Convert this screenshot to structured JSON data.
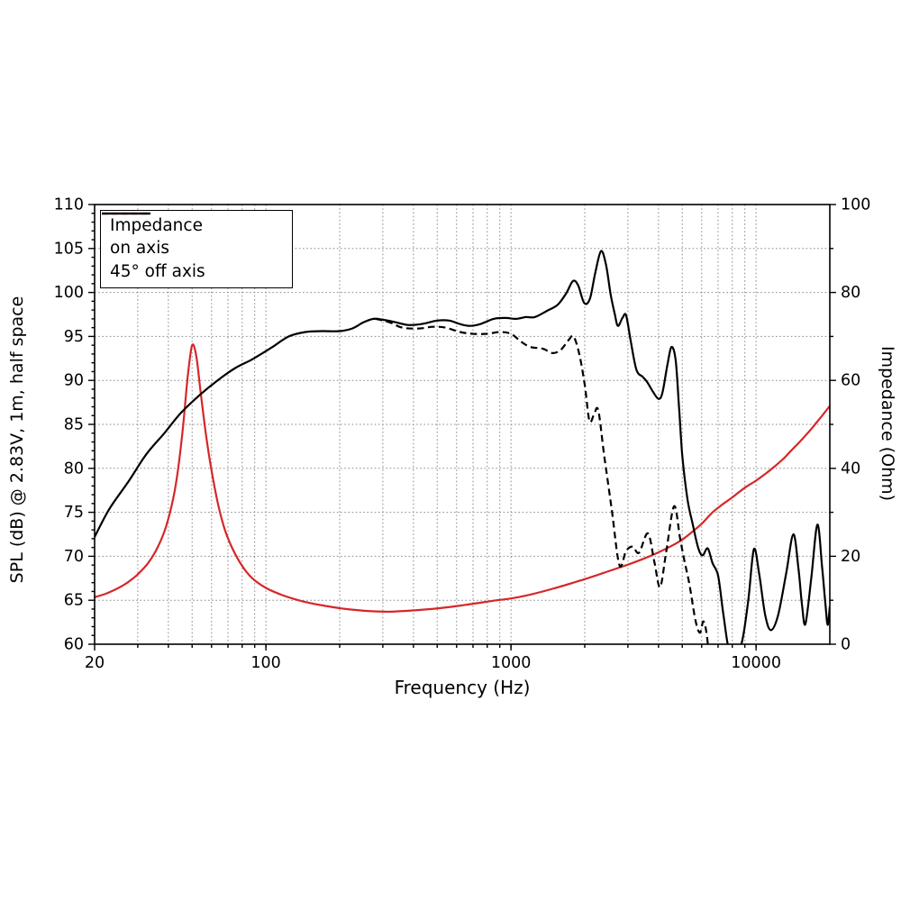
{
  "chart_data": {
    "type": "line",
    "title": "",
    "xlabel": "Frequency (Hz)",
    "ylabel_left": "SPL (dB) @ 2.83V, 1m, half space",
    "ylabel_right": "Impedance (Ohm)",
    "x_scale": "log",
    "x_range": [
      20,
      20000
    ],
    "x_major_ticks": [
      20,
      100,
      1000,
      10000
    ],
    "x_tick_labels": [
      "20",
      "100",
      "1000",
      "10000"
    ],
    "y_left_range": [
      60,
      110
    ],
    "y_left_major_step": 5,
    "y_left_minor_step": 1,
    "y_left_tick_labels": [
      "60",
      "65",
      "70",
      "75",
      "80",
      "85",
      "90",
      "95",
      "100",
      "105",
      "110"
    ],
    "y_right_range": [
      0,
      100
    ],
    "y_right_major_step": 20,
    "y_right_minor_step": 10,
    "y_right_tick_labels": [
      "0",
      "20",
      "40",
      "60",
      "80",
      "100"
    ],
    "grid": "dotted",
    "grid_color": "#8a8a8a",
    "legend_position": "upper left",
    "colors": {
      "impedance": "#d62728",
      "spl": "#000000"
    },
    "series": [
      {
        "name": "Impedance",
        "axis": "right",
        "units": "Ohm",
        "color": "#d62728",
        "style": "solid",
        "points": [
          [
            20,
            10.7
          ],
          [
            22,
            11.4
          ],
          [
            24,
            12.3
          ],
          [
            26,
            13.3
          ],
          [
            28,
            14.5
          ],
          [
            30,
            15.9
          ],
          [
            33,
            18.4
          ],
          [
            36,
            21.8
          ],
          [
            39,
            26.5
          ],
          [
            42,
            33.5
          ],
          [
            44,
            40.5
          ],
          [
            46,
            50
          ],
          [
            48,
            61
          ],
          [
            50,
            68
          ],
          [
            52,
            65.5
          ],
          [
            54,
            58
          ],
          [
            57,
            47.5
          ],
          [
            60,
            39.5
          ],
          [
            64,
            31.5
          ],
          [
            68,
            26
          ],
          [
            73,
            21.8
          ],
          [
            80,
            17.8
          ],
          [
            88,
            15.0
          ],
          [
            100,
            12.8
          ],
          [
            115,
            11.3
          ],
          [
            130,
            10.3
          ],
          [
            150,
            9.4
          ],
          [
            175,
            8.7
          ],
          [
            200,
            8.2
          ],
          [
            230,
            7.8
          ],
          [
            270,
            7.5
          ],
          [
            320,
            7.4
          ],
          [
            380,
            7.6
          ],
          [
            450,
            7.9
          ],
          [
            550,
            8.4
          ],
          [
            700,
            9.2
          ],
          [
            850,
            9.9
          ],
          [
            1000,
            10.4
          ],
          [
            1200,
            11.3
          ],
          [
            1500,
            12.7
          ],
          [
            2000,
            14.8
          ],
          [
            2500,
            16.6
          ],
          [
            3000,
            18.1
          ],
          [
            3500,
            19.5
          ],
          [
            4000,
            20.9
          ],
          [
            4500,
            22.3
          ],
          [
            5000,
            23.8
          ],
          [
            5500,
            25.6
          ],
          [
            6000,
            27.4
          ],
          [
            6650,
            30.0
          ],
          [
            7300,
            31.8
          ],
          [
            8000,
            33.4
          ],
          [
            9000,
            35.6
          ],
          [
            10000,
            37.2
          ],
          [
            11000,
            38.9
          ],
          [
            12000,
            40.6
          ],
          [
            13000,
            42.3
          ],
          [
            14000,
            44.2
          ],
          [
            15000,
            45.9
          ],
          [
            16000,
            47.6
          ],
          [
            17000,
            49.3
          ],
          [
            18000,
            51.0
          ],
          [
            19000,
            52.6
          ],
          [
            20000,
            54.2
          ]
        ]
      },
      {
        "name": "on axis",
        "axis": "left",
        "units": "dB",
        "color": "#000000",
        "style": "solid",
        "points": [
          [
            20,
            72.2
          ],
          [
            23,
            75.4
          ],
          [
            27.5,
            78.5
          ],
          [
            32.5,
            81.6
          ],
          [
            38.5,
            84.0
          ],
          [
            45,
            86.3
          ],
          [
            54,
            88.4
          ],
          [
            63.5,
            90.0
          ],
          [
            75,
            91.4
          ],
          [
            88,
            92.4
          ],
          [
            105,
            93.7
          ],
          [
            124,
            95.0
          ],
          [
            145,
            95.5
          ],
          [
            170,
            95.6
          ],
          [
            200,
            95.6
          ],
          [
            225,
            95.9
          ],
          [
            250,
            96.6
          ],
          [
            275,
            97.0
          ],
          [
            300,
            96.9
          ],
          [
            340,
            96.6
          ],
          [
            380,
            96.3
          ],
          [
            430,
            96.4
          ],
          [
            500,
            96.8
          ],
          [
            560,
            96.8
          ],
          [
            620,
            96.4
          ],
          [
            680,
            96.2
          ],
          [
            750,
            96.4
          ],
          [
            850,
            97.0
          ],
          [
            950,
            97.1
          ],
          [
            1050,
            97.0
          ],
          [
            1150,
            97.2
          ],
          [
            1250,
            97.2
          ],
          [
            1400,
            97.9
          ],
          [
            1550,
            98.6
          ],
          [
            1680,
            99.9
          ],
          [
            1790,
            101.3
          ],
          [
            1880,
            100.8
          ],
          [
            1990,
            98.8
          ],
          [
            2100,
            99.3
          ],
          [
            2210,
            102.3
          ],
          [
            2330,
            104.7
          ],
          [
            2440,
            103.2
          ],
          [
            2550,
            99.8
          ],
          [
            2650,
            97.6
          ],
          [
            2730,
            96.2
          ],
          [
            2850,
            97.1
          ],
          [
            2950,
            97.4
          ],
          [
            3080,
            94.5
          ],
          [
            3250,
            91.2
          ],
          [
            3450,
            90.4
          ],
          [
            3600,
            89.8
          ],
          [
            3800,
            88.7
          ],
          [
            4000,
            87.9
          ],
          [
            4150,
            88.6
          ],
          [
            4350,
            91.8
          ],
          [
            4520,
            93.8
          ],
          [
            4700,
            92.3
          ],
          [
            4850,
            87.0
          ],
          [
            5000,
            81.5
          ],
          [
            5250,
            76.5
          ],
          [
            5500,
            73.8
          ],
          [
            5800,
            71.0
          ],
          [
            6050,
            70.1
          ],
          [
            6350,
            70.9
          ],
          [
            6650,
            69.2
          ],
          [
            7000,
            67.8
          ],
          [
            7350,
            63.5
          ],
          [
            7750,
            59.4
          ],
          [
            8300,
            58.7
          ],
          [
            8800,
            60.5
          ],
          [
            9300,
            65.0
          ],
          [
            9800,
            70.8
          ],
          [
            10300,
            68.0
          ],
          [
            10900,
            63.3
          ],
          [
            11500,
            61.6
          ],
          [
            12300,
            63.3
          ],
          [
            13300,
            68.2
          ],
          [
            14200,
            72.5
          ],
          [
            14900,
            68.6
          ],
          [
            15400,
            64.5
          ],
          [
            15900,
            62.3
          ],
          [
            16800,
            67.5
          ],
          [
            17800,
            73.6
          ],
          [
            18600,
            68.8
          ],
          [
            19200,
            64.5
          ],
          [
            19600,
            62.2
          ],
          [
            20000,
            64.3
          ]
        ]
      },
      {
        "name": "45° off axis",
        "axis": "left",
        "units": "dB",
        "color": "#000000",
        "style": "dashed",
        "points": [
          [
            280,
            97.0
          ],
          [
            320,
            96.6
          ],
          [
            360,
            96.0
          ],
          [
            420,
            95.9
          ],
          [
            480,
            96.1
          ],
          [
            540,
            96.0
          ],
          [
            620,
            95.5
          ],
          [
            700,
            95.3
          ],
          [
            800,
            95.3
          ],
          [
            900,
            95.5
          ],
          [
            1000,
            95.3
          ],
          [
            1100,
            94.4
          ],
          [
            1200,
            93.8
          ],
          [
            1350,
            93.6
          ],
          [
            1480,
            93.1
          ],
          [
            1600,
            93.5
          ],
          [
            1720,
            94.6
          ],
          [
            1800,
            95.0
          ],
          [
            1900,
            93.0
          ],
          [
            2000,
            89.5
          ],
          [
            2090,
            85.4
          ],
          [
            2180,
            86.1
          ],
          [
            2270,
            86.6
          ],
          [
            2400,
            81.5
          ],
          [
            2580,
            75.2
          ],
          [
            2770,
            69.0
          ],
          [
            2950,
            70.6
          ],
          [
            3140,
            71.1
          ],
          [
            3330,
            70.4
          ],
          [
            3620,
            72.6
          ],
          [
            3850,
            69.3
          ],
          [
            4060,
            66.5
          ],
          [
            4300,
            70.5
          ],
          [
            4630,
            75.7
          ],
          [
            4900,
            72.0
          ],
          [
            5100,
            69.5
          ],
          [
            5350,
            66.8
          ],
          [
            5650,
            62.8
          ],
          [
            5900,
            61.3
          ],
          [
            6100,
            62.6
          ],
          [
            6300,
            61.0
          ],
          [
            6500,
            57.0
          ]
        ]
      }
    ],
    "legend": [
      {
        "label": "Impedance",
        "color": "#d62728",
        "style": "solid"
      },
      {
        "label": "on axis",
        "color": "#000000",
        "style": "solid"
      },
      {
        "label": "45° off axis",
        "color": "#000000",
        "style": "dashed"
      }
    ]
  }
}
